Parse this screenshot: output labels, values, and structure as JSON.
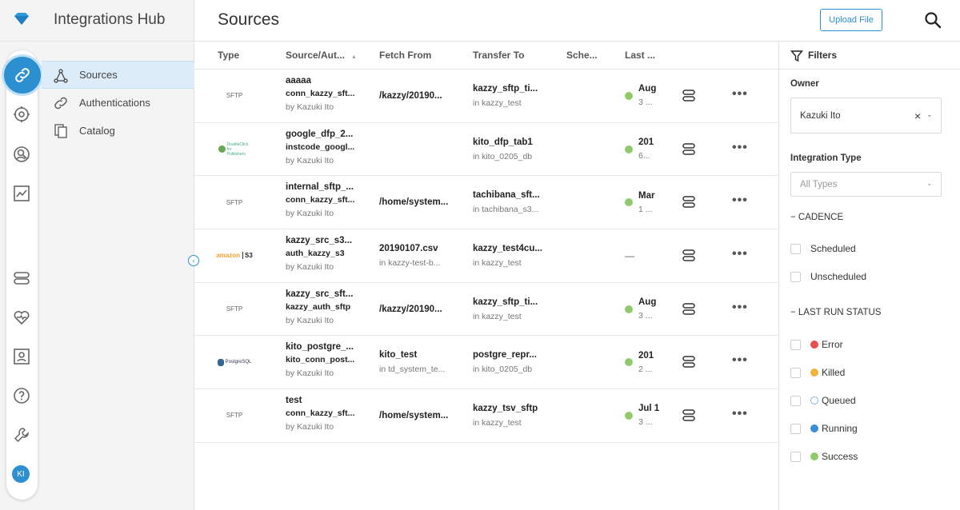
{
  "app": {
    "title": "Integrations Hub"
  },
  "subnav": [
    {
      "label": "Sources",
      "icon": "sources-icon",
      "active": true
    },
    {
      "label": "Authentications",
      "icon": "link-icon",
      "active": false
    },
    {
      "label": "Catalog",
      "icon": "catalog-icon",
      "active": false
    }
  ],
  "user": {
    "initials": "KI"
  },
  "header": {
    "title": "Sources",
    "upload_label": "Upload File"
  },
  "table": {
    "columns": [
      "Type",
      "Source/Aut...",
      "Fetch From",
      "Transfer To",
      "Sche...",
      "Last ..."
    ],
    "rows": [
      {
        "type": "SFTP",
        "source": "aaaaa",
        "auth": "conn_kazzy_sft...",
        "owner": "by Kazuki Ito",
        "fetch": "/kazzy/20190...",
        "fetch_sub": "",
        "to": "kazzy_sftp_ti...",
        "to_sub": "in kazzy_test",
        "last_a": "Aug",
        "last_b": "3 ...",
        "status": "success"
      },
      {
        "type": "DoubleClick for Publishers",
        "source": "google_dfp_2...",
        "auth": "instcode_googl...",
        "owner": "by Kazuki Ito",
        "fetch": "",
        "fetch_sub": "",
        "to": "kito_dfp_tab1",
        "to_sub": "in kito_0205_db",
        "last_a": "201",
        "last_b": "6...",
        "status": "success"
      },
      {
        "type": "SFTP",
        "source": "internal_sftp_...",
        "auth": "conn_kazzy_sft...",
        "owner": "by Kazuki Ito",
        "fetch": "/home/system...",
        "fetch_sub": "",
        "to": "tachibana_sft...",
        "to_sub": "in tachibana_s3...",
        "last_a": "Mar",
        "last_b": "1 ...",
        "status": "success"
      },
      {
        "type": "amazon S3",
        "source": "kazzy_src_s3...",
        "auth": "auth_kazzy_s3",
        "owner": "by Kazuki Ito",
        "fetch": "20190107.csv",
        "fetch_sub": "in kazzy-test-b...",
        "to": "kazzy_test4cu...",
        "to_sub": "in kazzy_test",
        "last_a": "—",
        "last_b": "",
        "status": "none"
      },
      {
        "type": "SFTP",
        "source": "kazzy_src_sft...",
        "auth": "kazzy_auth_sftp",
        "owner": "by Kazuki Ito",
        "fetch": "/kazzy/20190...",
        "fetch_sub": "",
        "to": "kazzy_sftp_ti...",
        "to_sub": "in kazzy_test",
        "last_a": "Aug",
        "last_b": "3 ...",
        "status": "success"
      },
      {
        "type": "PostgreSQL",
        "source": "kito_postgre_...",
        "auth": "kito_conn_post...",
        "owner": "by Kazuki Ito",
        "fetch": "kito_test",
        "fetch_sub": "in td_system_te...",
        "to": "postgre_repr...",
        "to_sub": "in kito_0205_db",
        "last_a": "201",
        "last_b": "2 ...",
        "status": "success"
      },
      {
        "type": "SFTP",
        "source": "test",
        "auth": "conn_kazzy_sft...",
        "owner": "by Kazuki Ito",
        "fetch": "/home/system...",
        "fetch_sub": "",
        "to": "kazzy_tsv_sftp",
        "to_sub": "in kazzy_test",
        "last_a": "Jul 1",
        "last_b": "3 ...",
        "status": "success"
      }
    ]
  },
  "filters": {
    "title": "Filters",
    "owner_label": "Owner",
    "owner_value": "Kazuki Ito",
    "type_label": "Integration Type",
    "type_value": "All Types",
    "cadence_label": "− CADENCE",
    "cadence": [
      "Scheduled",
      "Unscheduled"
    ],
    "status_label": "− LAST RUN STATUS",
    "statuses": [
      {
        "label": "Error",
        "color": "#e94f4f"
      },
      {
        "label": "Killed",
        "color": "#f0b43a"
      },
      {
        "label": "Queued",
        "color": "#ffffff"
      },
      {
        "label": "Running",
        "color": "#3b8fd4"
      },
      {
        "label": "Success",
        "color": "#8fcb6c"
      }
    ]
  },
  "colors": {
    "accent": "#2b8fd0",
    "success": "#8fcb6c"
  }
}
